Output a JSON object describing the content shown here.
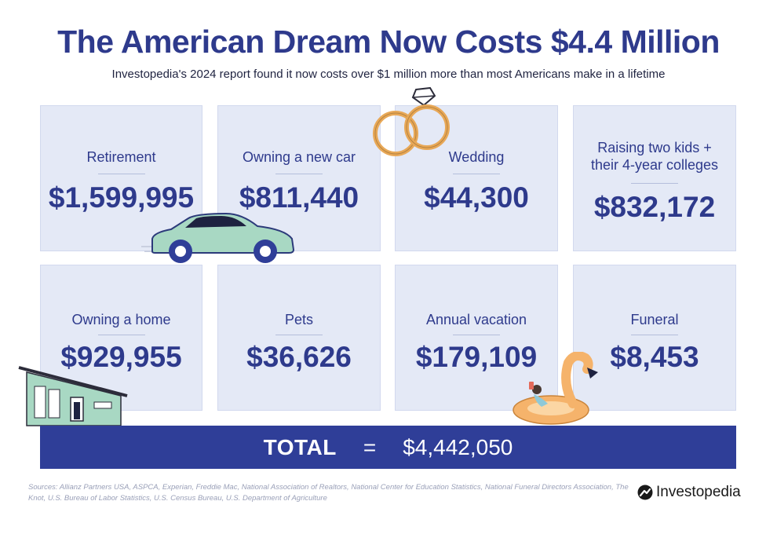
{
  "header": {
    "title": "The American Dream Now Costs $4.4 Million",
    "subtitle": "Investopedia's 2024 report found it now costs over $1 million more than most Americans make in a lifetime"
  },
  "cards": [
    {
      "label": "Retirement",
      "amount": "$1,599,995"
    },
    {
      "label": "Owning a new car",
      "amount": "$811,440"
    },
    {
      "label": "Wedding",
      "amount": "$44,300"
    },
    {
      "label": "Raising two kids + their 4-year colleges",
      "amount": "$832,172"
    },
    {
      "label": "Owning a home",
      "amount": "$929,955"
    },
    {
      "label": "Pets",
      "amount": "$36,626"
    },
    {
      "label": "Annual vacation",
      "amount": "$179,109"
    },
    {
      "label": "Funeral",
      "amount": "$8,453"
    }
  ],
  "total": {
    "label": "TOTAL",
    "equals": "=",
    "amount": "$4,442,050"
  },
  "footer": {
    "sources": "Sources: Allianz Partners USA, ASPCA, Experian, Freddie Mac, National Association of Realtors, National Center for Education Statistics, National Funeral Directors Association, The Knot, U.S. Bureau of Labor Statistics, U.S. Census Bureau, U.S. Department of Agriculture",
    "brand": "Investopedia"
  },
  "colors": {
    "primary": "#2e3a8c",
    "card_bg": "#e4e9f6",
    "total_bar": "#2f3e98",
    "illustration_green": "#9fd6bd",
    "illustration_orange": "#f5b36b"
  },
  "icons": [
    "car-illustration",
    "rings-illustration",
    "house-illustration",
    "flamingo-float-illustration",
    "investopedia-logo-icon"
  ]
}
